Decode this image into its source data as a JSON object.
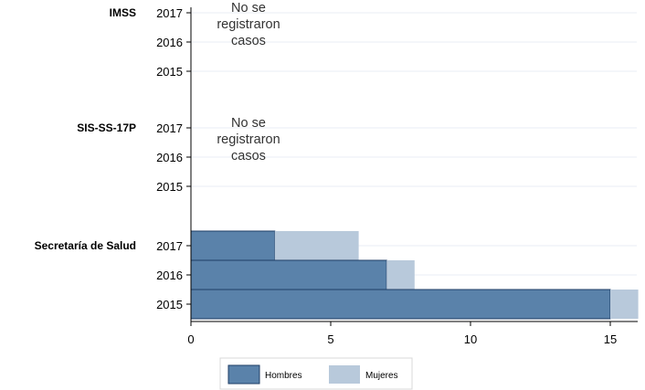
{
  "chart_data": {
    "type": "bar",
    "orientation": "horizontal",
    "stacked": true,
    "xlim": [
      0,
      16
    ],
    "x_ticks": [
      "0",
      "5",
      "10",
      "15"
    ],
    "grid": true,
    "legend_position": "bottom",
    "colors": {
      "Hombres": "#5a82aa",
      "Mujeres": "#b8c9db",
      "edge": "#1f3e66",
      "grid": "#e8eef4"
    },
    "groups": [
      {
        "label": "IMSS",
        "annotation": [
          "No se",
          "registraron",
          "casos"
        ],
        "rows": [
          {
            "year": "2017",
            "Hombres": 0,
            "Mujeres": 0
          },
          {
            "year": "2016",
            "Hombres": 0,
            "Mujeres": 0
          },
          {
            "year": "2015",
            "Hombres": 0,
            "Mujeres": 0
          }
        ]
      },
      {
        "label": "SIS-SS-17P",
        "annotation": [
          "No se",
          "registraron",
          "casos"
        ],
        "rows": [
          {
            "year": "2017",
            "Hombres": 0,
            "Mujeres": 0
          },
          {
            "year": "2016",
            "Hombres": 0,
            "Mujeres": 0
          },
          {
            "year": "2015",
            "Hombres": 0,
            "Mujeres": 0
          }
        ]
      },
      {
        "label": "Secretaría de Salud",
        "annotation": [],
        "rows": [
          {
            "year": "2017",
            "Hombres": 3,
            "Mujeres": 3
          },
          {
            "year": "2016",
            "Hombres": 7,
            "Mujeres": 1
          },
          {
            "year": "2015",
            "Hombres": 15,
            "Mujeres": 1
          }
        ]
      }
    ],
    "legend": [
      "Hombres",
      "Mujeres"
    ]
  }
}
